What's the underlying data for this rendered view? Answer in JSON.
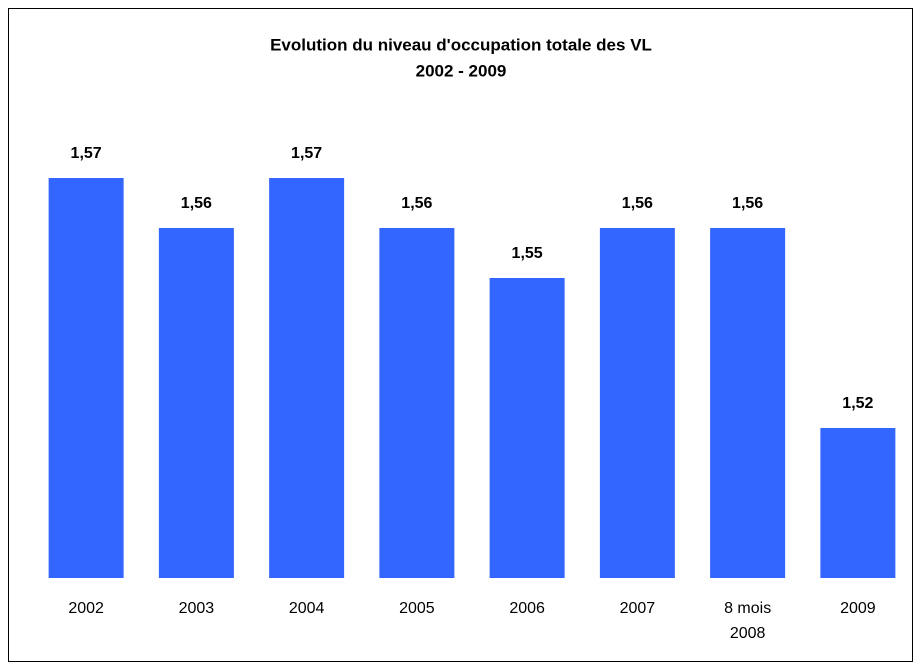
{
  "chart_data": {
    "type": "bar",
    "title": [
      "Evolution du niveau d'occupation totale des VL",
      "2002 - 2009"
    ],
    "categories": [
      "2002",
      "2003",
      "2004",
      "2005",
      "2006",
      "2007",
      "8 mois\n2008",
      "2009"
    ],
    "values": [
      1.57,
      1.56,
      1.57,
      1.56,
      1.55,
      1.56,
      1.56,
      1.52
    ],
    "value_labels": [
      "1,57",
      "1,56",
      "1,57",
      "1,56",
      "1,55",
      "1,56",
      "1,56",
      "1,52"
    ],
    "color": "#3366ff",
    "ylim": [
      1.49,
      1.57
    ]
  }
}
